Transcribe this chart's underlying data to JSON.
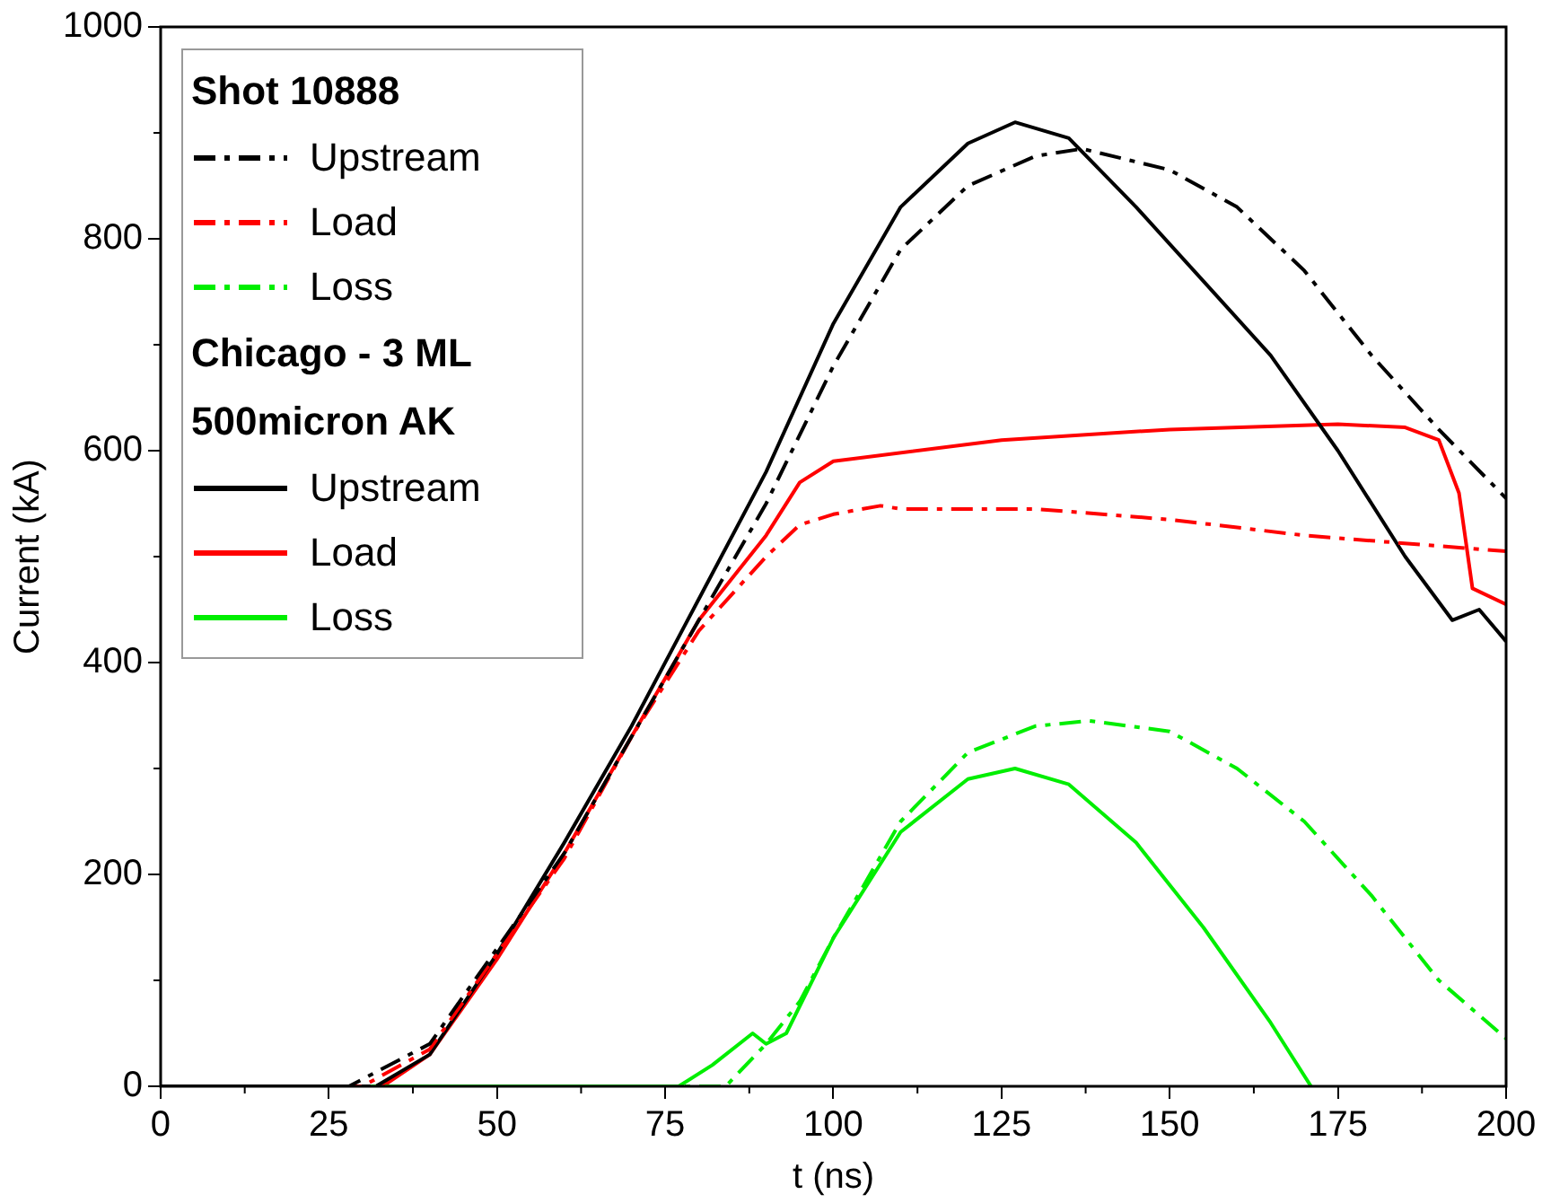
{
  "chart_data": {
    "type": "line",
    "xlabel": "t (ns)",
    "ylabel": "Current (kA)",
    "xlim": [
      0,
      200
    ],
    "ylim": [
      0,
      1000
    ],
    "xticks": [
      0,
      25,
      50,
      75,
      100,
      125,
      150,
      175,
      200
    ],
    "yticks": [
      0,
      200,
      400,
      600,
      800,
      1000
    ],
    "grid": false,
    "legend": "top left",
    "marker": "none",
    "annotations": [
      "Shot 10888",
      "Chicago - 3 ML 500micron AK"
    ],
    "series": [
      {
        "name": "Upstream",
        "color": "#000000",
        "line_style": "dashdot",
        "x": [
          0,
          28,
          40,
          50,
          60,
          70,
          80,
          90,
          100,
          110,
          120,
          130,
          137,
          150,
          160,
          170,
          180,
          190,
          200
        ],
        "values": [
          0,
          0,
          40,
          130,
          220,
          330,
          440,
          550,
          680,
          790,
          850,
          878,
          885,
          865,
          830,
          770,
          690,
          620,
          555
        ]
      },
      {
        "name": "Load",
        "color": "#ff0000",
        "line_style": "dashdot",
        "x": [
          0,
          30,
          40,
          50,
          60,
          70,
          80,
          90,
          95,
          100,
          107,
          110,
          130,
          150,
          170,
          190,
          200
        ],
        "values": [
          0,
          0,
          35,
          125,
          215,
          330,
          430,
          500,
          530,
          540,
          548,
          545,
          545,
          535,
          520,
          510,
          505
        ]
      },
      {
        "name": "Loss",
        "color": "#00ee00",
        "line_style": "dashdot",
        "x": [
          0,
          84,
          90,
          95,
          100,
          110,
          120,
          130,
          138,
          150,
          160,
          170,
          180,
          190,
          200
        ],
        "values": [
          0,
          0,
          40,
          80,
          140,
          250,
          315,
          340,
          345,
          335,
          300,
          250,
          180,
          100,
          45
        ]
      },
      {
        "name": "Upstream",
        "color": "#000000",
        "line_style": "solid",
        "x": [
          0,
          32,
          40,
          50,
          60,
          70,
          80,
          90,
          100,
          110,
          120,
          127,
          135,
          145,
          155,
          165,
          175,
          185,
          192,
          196,
          200
        ],
        "values": [
          0,
          0,
          30,
          125,
          230,
          340,
          460,
          580,
          720,
          830,
          890,
          910,
          895,
          830,
          760,
          690,
          600,
          500,
          440,
          450,
          420
        ]
      },
      {
        "name": "Load",
        "color": "#ff0000",
        "line_style": "solid",
        "x": [
          0,
          33,
          40,
          50,
          60,
          70,
          80,
          90,
          95,
          100,
          125,
          150,
          175,
          185,
          190,
          193,
          195,
          200
        ],
        "values": [
          0,
          0,
          30,
          120,
          220,
          330,
          440,
          520,
          570,
          590,
          610,
          620,
          625,
          622,
          610,
          560,
          470,
          455
        ]
      },
      {
        "name": "Loss",
        "color": "#00ee00",
        "line_style": "solid",
        "x": [
          0,
          77,
          82,
          88,
          90,
          93,
          100,
          110,
          120,
          127,
          135,
          145,
          155,
          165,
          171
        ],
        "values": [
          0,
          0,
          20,
          50,
          40,
          50,
          140,
          240,
          290,
          300,
          285,
          230,
          150,
          60,
          0
        ]
      }
    ]
  }
}
